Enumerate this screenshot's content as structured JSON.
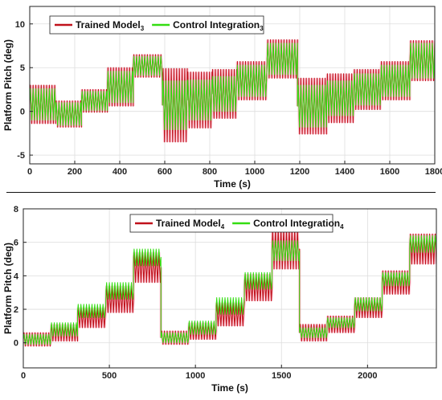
{
  "chart_data": [
    {
      "type": "line",
      "xlabel": "Time (s)",
      "ylabel": "Platform Pitch (deg)",
      "xlim": [
        0,
        1800
      ],
      "ylim": [
        -6,
        12
      ],
      "xticks": [
        0,
        200,
        400,
        600,
        800,
        1000,
        1200,
        1400,
        1600,
        1800
      ],
      "yticks": [
        -5,
        0,
        5,
        10
      ],
      "grid": true,
      "legend_position": "top-left",
      "oscillation_period_s": 12,
      "series": [
        {
          "name": "Trained Model",
          "name_subscript": "3",
          "color": "#c0111b",
          "segments": [
            {
              "t0": 0,
              "t1": 115,
              "mean": 0.8,
              "amp": 2.2
            },
            {
              "t0": 115,
              "t1": 230,
              "mean": -0.3,
              "amp": 1.5
            },
            {
              "t0": 230,
              "t1": 345,
              "mean": 1.2,
              "amp": 1.3
            },
            {
              "t0": 345,
              "t1": 460,
              "mean": 2.8,
              "amp": 2.2
            },
            {
              "t0": 460,
              "t1": 590,
              "mean": 5.2,
              "amp": 1.3
            },
            {
              "t0": 590,
              "t1": 700,
              "mean": 0.7,
              "amp": 4.2
            },
            {
              "t0": 700,
              "t1": 810,
              "mean": 1.3,
              "amp": 3.2
            },
            {
              "t0": 810,
              "t1": 920,
              "mean": 2.0,
              "amp": 2.8
            },
            {
              "t0": 920,
              "t1": 1055,
              "mean": 3.5,
              "amp": 2.2
            },
            {
              "t0": 1055,
              "t1": 1190,
              "mean": 6.0,
              "amp": 2.2
            },
            {
              "t0": 1190,
              "t1": 1320,
              "mean": 0.6,
              "amp": 3.2
            },
            {
              "t0": 1320,
              "t1": 1440,
              "mean": 1.5,
              "amp": 2.8
            },
            {
              "t0": 1440,
              "t1": 1560,
              "mean": 2.5,
              "amp": 2.3
            },
            {
              "t0": 1560,
              "t1": 1690,
              "mean": 3.5,
              "amp": 2.2
            },
            {
              "t0": 1690,
              "t1": 1800,
              "mean": 5.8,
              "amp": 2.3
            }
          ]
        },
        {
          "name": "Control Integration",
          "name_subscript": "3",
          "color": "#33dd11",
          "segments": [
            {
              "t0": 0,
              "t1": 115,
              "mean": 0.8,
              "amp": 1.8
            },
            {
              "t0": 115,
              "t1": 230,
              "mean": -0.3,
              "amp": 1.3
            },
            {
              "t0": 230,
              "t1": 345,
              "mean": 1.2,
              "amp": 1.1
            },
            {
              "t0": 345,
              "t1": 460,
              "mean": 2.8,
              "amp": 1.8
            },
            {
              "t0": 460,
              "t1": 590,
              "mean": 5.2,
              "amp": 1.1
            },
            {
              "t0": 590,
              "t1": 700,
              "mean": 0.7,
              "amp": 2.8
            },
            {
              "t0": 700,
              "t1": 810,
              "mean": 1.3,
              "amp": 2.3
            },
            {
              "t0": 810,
              "t1": 920,
              "mean": 2.0,
              "amp": 2.0
            },
            {
              "t0": 920,
              "t1": 1055,
              "mean": 3.5,
              "amp": 1.8
            },
            {
              "t0": 1055,
              "t1": 1190,
              "mean": 6.0,
              "amp": 1.8
            },
            {
              "t0": 1190,
              "t1": 1320,
              "mean": 0.6,
              "amp": 2.4
            },
            {
              "t0": 1320,
              "t1": 1440,
              "mean": 1.5,
              "amp": 2.0
            },
            {
              "t0": 1440,
              "t1": 1560,
              "mean": 2.5,
              "amp": 1.8
            },
            {
              "t0": 1560,
              "t1": 1690,
              "mean": 3.5,
              "amp": 1.8
            },
            {
              "t0": 1690,
              "t1": 1800,
              "mean": 5.8,
              "amp": 2.0
            }
          ]
        }
      ]
    },
    {
      "type": "line",
      "xlabel": "Time (s)",
      "ylabel": "Platform Pitch (deg)",
      "xlim": [
        0,
        2400
      ],
      "ylim": [
        -1.5,
        8
      ],
      "xticks": [
        0,
        500,
        1000,
        1500,
        2000
      ],
      "yticks": [
        0,
        2,
        4,
        6,
        8
      ],
      "grid": true,
      "legend_position": "top-center",
      "oscillation_period_s": 16,
      "series": [
        {
          "name": "Trained Model",
          "name_subscript": "4",
          "color": "#c0111b",
          "segments": [
            {
              "t0": 0,
              "t1": 160,
              "mean": 0.2,
              "amp": 0.4
            },
            {
              "t0": 160,
              "t1": 315,
              "mean": 0.6,
              "amp": 0.5
            },
            {
              "t0": 315,
              "t1": 480,
              "mean": 1.5,
              "amp": 0.6
            },
            {
              "t0": 480,
              "t1": 640,
              "mean": 2.6,
              "amp": 0.8
            },
            {
              "t0": 640,
              "t1": 800,
              "mean": 4.5,
              "amp": 0.9
            },
            {
              "t0": 800,
              "t1": 960,
              "mean": 0.3,
              "amp": 0.4
            },
            {
              "t0": 960,
              "t1": 1120,
              "mean": 0.7,
              "amp": 0.5
            },
            {
              "t0": 1120,
              "t1": 1285,
              "mean": 1.7,
              "amp": 0.7
            },
            {
              "t0": 1285,
              "t1": 1445,
              "mean": 3.3,
              "amp": 0.8
            },
            {
              "t0": 1445,
              "t1": 1605,
              "mean": 5.6,
              "amp": 1.2
            },
            {
              "t0": 1605,
              "t1": 1765,
              "mean": 0.6,
              "amp": 0.5
            },
            {
              "t0": 1765,
              "t1": 1925,
              "mean": 1.1,
              "amp": 0.5
            },
            {
              "t0": 1925,
              "t1": 2085,
              "mean": 2.1,
              "amp": 0.6
            },
            {
              "t0": 2085,
              "t1": 2245,
              "mean": 3.6,
              "amp": 0.7
            },
            {
              "t0": 2245,
              "t1": 2400,
              "mean": 5.6,
              "amp": 0.9
            }
          ]
        },
        {
          "name": "Control Integration",
          "name_subscript": "4",
          "color": "#33dd11",
          "segments": [
            {
              "t0": 0,
              "t1": 160,
              "mean": 0.2,
              "amp": 0.3
            },
            {
              "t0": 160,
              "t1": 315,
              "mean": 0.8,
              "amp": 0.4
            },
            {
              "t0": 315,
              "t1": 480,
              "mean": 1.9,
              "amp": 0.4
            },
            {
              "t0": 480,
              "t1": 640,
              "mean": 3.1,
              "amp": 0.5
            },
            {
              "t0": 640,
              "t1": 800,
              "mean": 5.1,
              "amp": 0.5
            },
            {
              "t0": 800,
              "t1": 960,
              "mean": 0.3,
              "amp": 0.3
            },
            {
              "t0": 960,
              "t1": 1120,
              "mean": 0.9,
              "amp": 0.4
            },
            {
              "t0": 1120,
              "t1": 1285,
              "mean": 2.2,
              "amp": 0.5
            },
            {
              "t0": 1285,
              "t1": 1445,
              "mean": 3.7,
              "amp": 0.5
            },
            {
              "t0": 1445,
              "t1": 1605,
              "mean": 5.5,
              "amp": 0.6
            },
            {
              "t0": 1605,
              "t1": 1765,
              "mean": 0.6,
              "amp": 0.3
            },
            {
              "t0": 1765,
              "t1": 1925,
              "mean": 1.2,
              "amp": 0.3
            },
            {
              "t0": 1925,
              "t1": 2085,
              "mean": 2.3,
              "amp": 0.4
            },
            {
              "t0": 2085,
              "t1": 2245,
              "mean": 3.8,
              "amp": 0.4
            },
            {
              "t0": 2245,
              "t1": 2400,
              "mean": 5.9,
              "amp": 0.5
            }
          ]
        }
      ]
    }
  ]
}
